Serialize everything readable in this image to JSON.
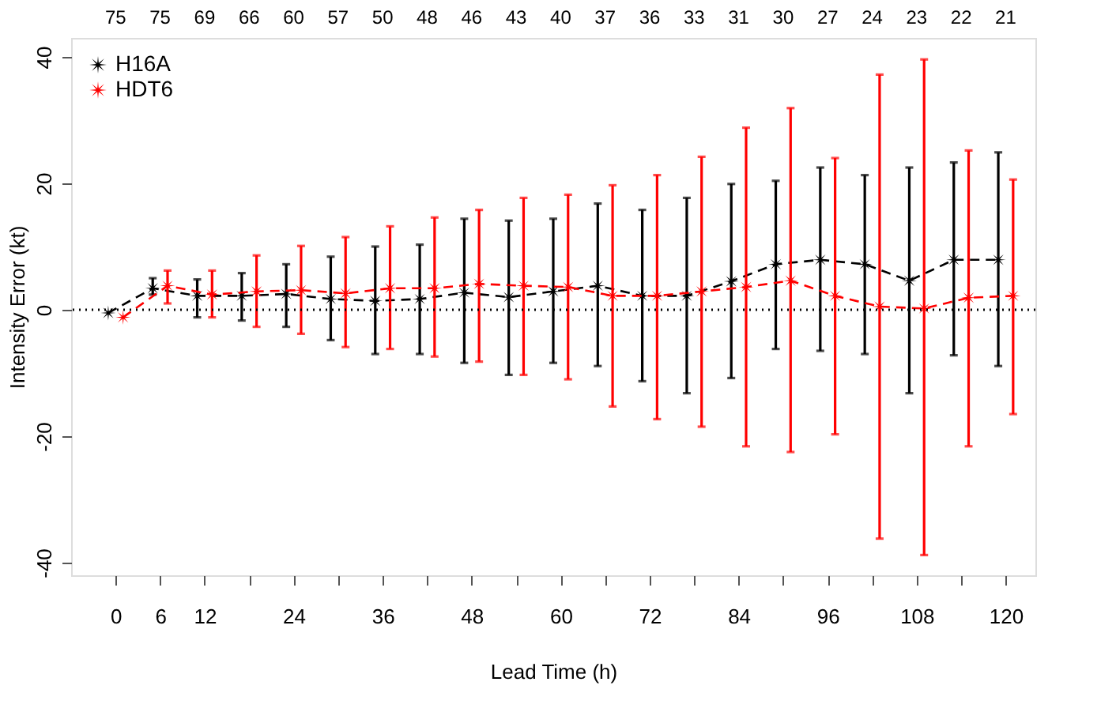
{
  "chart_data": {
    "type": "line",
    "xlabel": "Lead Time (h)",
    "ylabel": "Intensity Error (kt)",
    "xlim": [
      -6,
      124
    ],
    "ylim": [
      -42,
      43
    ],
    "xticks": [
      0,
      6,
      12,
      {
        "value": 18,
        "label": null
      },
      24,
      {
        "value": 30,
        "label": null
      },
      36,
      {
        "value": 42,
        "label": null
      },
      48,
      {
        "value": 54,
        "label": null
      },
      60,
      {
        "value": 66,
        "label": null
      },
      72,
      {
        "value": 78,
        "label": null
      },
      84,
      {
        "value": 90,
        "label": null
      },
      96,
      {
        "value": 102,
        "label": null
      },
      108,
      {
        "value": 114,
        "label": null
      },
      120
    ],
    "yticks": [
      -40,
      -20,
      0,
      20,
      40
    ],
    "annotations": [
      "75",
      "75",
      "69",
      "66",
      "60",
      "57",
      "50",
      "48",
      "46",
      "43",
      "40",
      "37",
      "36",
      "33",
      "31",
      "30",
      "27",
      "24",
      "23",
      "22",
      "21"
    ],
    "series": [
      {
        "name": "H16A",
        "color": "#000000",
        "x": [
          -1,
          5,
          11,
          17,
          23,
          29,
          35,
          41,
          47,
          53,
          59,
          65,
          71,
          77,
          83,
          89,
          95,
          101,
          107,
          113,
          119
        ],
        "values": [
          -0.5,
          3.4,
          2.2,
          2.2,
          2.5,
          1.7,
          1.4,
          1.7,
          2.7,
          2.0,
          2.9,
          3.8,
          2.2,
          2.2,
          4.5,
          7.2,
          7.9,
          7.2,
          4.6,
          7.9,
          7.9
        ],
        "errors": [
          null,
          [
            2.4,
            5.0
          ],
          [
            -1.2,
            4.8
          ],
          [
            -1.7,
            5.8
          ],
          [
            -2.7,
            7.2
          ],
          [
            -4.8,
            8.4
          ],
          [
            -7,
            10
          ],
          [
            -7,
            10.3
          ],
          [
            -8.4,
            14.4
          ],
          [
            -10.3,
            14.1
          ],
          [
            -8.4,
            14.4
          ],
          [
            -8.9,
            16.8
          ],
          [
            -11.3,
            15.8
          ],
          [
            -13.2,
            17.7
          ],
          [
            -10.8,
            19.9
          ],
          [
            -6.2,
            20.4
          ],
          [
            -6.5,
            22.5
          ],
          [
            -7,
            21.3
          ],
          [
            -13.2,
            22.5
          ],
          [
            -7.2,
            23.3
          ],
          [
            -8.9,
            24.9
          ]
        ]
      },
      {
        "name": "HDT6",
        "color": "#ff0000",
        "x": [
          1,
          7,
          13,
          19,
          25,
          31,
          37,
          43,
          49,
          55,
          61,
          67,
          73,
          79,
          85,
          91,
          97,
          103,
          109,
          115,
          121
        ],
        "values": [
          -1.2,
          3.8,
          2.4,
          2.9,
          3.1,
          2.6,
          3.4,
          3.4,
          4.1,
          3.8,
          3.6,
          2.2,
          2.2,
          2.9,
          3.6,
          4.6,
          2.2,
          0.5,
          0.2,
          1.9,
          2.2
        ],
        "errors": [
          null,
          [
            1,
            6.2
          ],
          [
            -1.2,
            6.2
          ],
          [
            -2.7,
            8.6
          ],
          [
            -3.8,
            10.1
          ],
          [
            -5.9,
            11.5
          ],
          [
            -6.2,
            13.2
          ],
          [
            -7.4,
            14.6
          ],
          [
            -8.2,
            15.8
          ],
          [
            -10.3,
            17.7
          ],
          [
            -11,
            18.2
          ],
          [
            -15.3,
            19.7
          ],
          [
            -17.3,
            21.3
          ],
          [
            -18.5,
            24.2
          ],
          [
            -21.6,
            28.8
          ],
          [
            -22.5,
            31.9
          ],
          [
            -19.7,
            24
          ],
          [
            -36.2,
            37.2
          ],
          [
            -38.8,
            39.6
          ],
          [
            -21.6,
            25.2
          ],
          [
            -16.5,
            20.6
          ]
        ]
      }
    ],
    "ref_lines": [
      {
        "axis": "y",
        "value": 0,
        "line_style": "dotted",
        "color": "#000000"
      }
    ],
    "marker": "star",
    "line_style": "dashed",
    "grid": false,
    "legend": "top left"
  }
}
